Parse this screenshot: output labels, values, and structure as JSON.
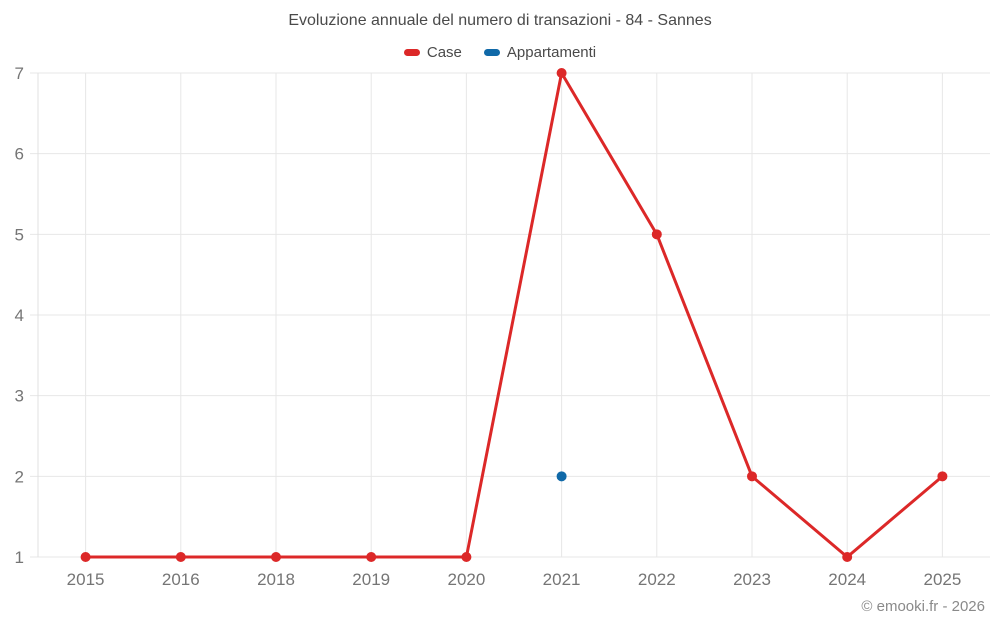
{
  "chart_data": {
    "type": "line",
    "title": "Evoluzione annuale del numero di transazioni - 84 - Sannes",
    "categories": [
      "2015",
      "2016",
      "2018",
      "2019",
      "2020",
      "2021",
      "2022",
      "2023",
      "2024",
      "2025"
    ],
    "series": [
      {
        "name": "Case",
        "color": "#dc2828",
        "values": [
          1,
          1,
          1,
          1,
          1,
          7,
          5,
          2,
          1,
          2
        ]
      },
      {
        "name": "Appartamenti",
        "color": "#1069a8",
        "values": [
          null,
          null,
          null,
          null,
          null,
          2,
          null,
          null,
          null,
          null
        ]
      }
    ],
    "xlabel": "",
    "ylabel": "",
    "ylim": [
      1,
      7
    ],
    "yticks": [
      1,
      2,
      3,
      4,
      5,
      6,
      7
    ],
    "grid": true,
    "legend_position": "top",
    "colors": {
      "grid": "#e7e7e7",
      "axis": "#e0e0e0",
      "tick_label": "#757575",
      "title_text": "#4a4a4a"
    }
  },
  "footer": {
    "credit": "© emooki.fr - 2026"
  }
}
